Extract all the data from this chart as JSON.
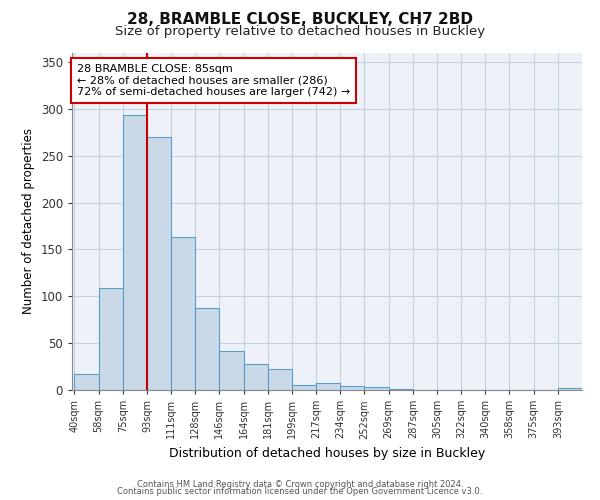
{
  "title": "28, BRAMBLE CLOSE, BUCKLEY, CH7 2BD",
  "subtitle": "Size of property relative to detached houses in Buckley",
  "xlabel": "Distribution of detached houses by size in Buckley",
  "ylabel": "Number of detached properties",
  "bar_labels": [
    "40sqm",
    "58sqm",
    "75sqm",
    "93sqm",
    "111sqm",
    "128sqm",
    "146sqm",
    "164sqm",
    "181sqm",
    "199sqm",
    "217sqm",
    "234sqm",
    "252sqm",
    "269sqm",
    "287sqm",
    "305sqm",
    "322sqm",
    "340sqm",
    "358sqm",
    "375sqm",
    "393sqm"
  ],
  "bar_values": [
    17,
    109,
    293,
    270,
    163,
    87,
    42,
    28,
    22,
    5,
    8,
    4,
    3,
    1,
    0,
    0,
    0,
    0,
    0,
    0,
    2
  ],
  "bar_color": "#c9d9e8",
  "bar_edge_color": "#5a9ec9",
  "vline_color": "#cc0000",
  "annotation_line1": "28 BRAMBLE CLOSE: 85sqm",
  "annotation_line2": "← 28% of detached houses are smaller (286)",
  "annotation_line3": "72% of semi-detached houses are larger (742) →",
  "annotation_box_color": "#ffffff",
  "annotation_box_edge": "#cc0000",
  "ylim": [
    0,
    360
  ],
  "yticks": [
    0,
    50,
    100,
    150,
    200,
    250,
    300,
    350
  ],
  "footer1": "Contains HM Land Registry data © Crown copyright and database right 2024.",
  "footer2": "Contains public sector information licensed under the Open Government Licence v3.0.",
  "title_fontsize": 11,
  "subtitle_fontsize": 9.5,
  "bg_color": "#f0f4f8"
}
